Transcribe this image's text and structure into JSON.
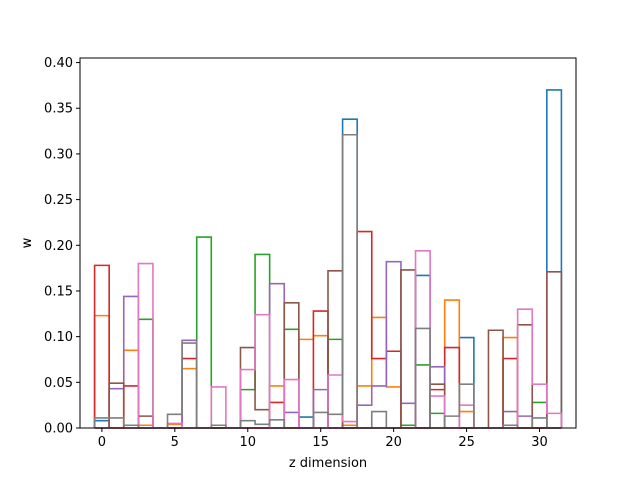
{
  "chart_data": {
    "type": "step",
    "xlabel": "z dimension",
    "ylabel": "w",
    "xlim": [
      -1.5,
      32.5
    ],
    "ylim": [
      0.0,
      0.405
    ],
    "x_ticks": [
      0,
      5,
      10,
      15,
      20,
      25,
      30
    ],
    "y_ticks": [
      0.0,
      0.05,
      0.1,
      0.15,
      0.2,
      0.25,
      0.3,
      0.35,
      0.4
    ],
    "x_tick_labels": [
      "0",
      "5",
      "10",
      "15",
      "20",
      "25",
      "30"
    ],
    "y_tick_labels": [
      "0.00",
      "0.05",
      "0.10",
      "0.15",
      "0.20",
      "0.25",
      "0.30",
      "0.35",
      "0.40"
    ],
    "x": [
      0,
      1,
      2,
      3,
      4,
      5,
      6,
      7,
      8,
      9,
      10,
      11,
      12,
      13,
      14,
      15,
      16,
      17,
      18,
      19,
      20,
      21,
      22,
      23,
      24,
      25,
      26,
      27,
      28,
      29,
      30,
      31
    ],
    "series": [
      {
        "color": "#1f77b4",
        "values": [
          0.008,
          0.0,
          0.0,
          0.0,
          0.0,
          0.0,
          0.0,
          0.0,
          0.0,
          0.0,
          0.0,
          0.0,
          0.0,
          0.0,
          0.012,
          0.0,
          0.0,
          0.338,
          0.0,
          0.0,
          0.0,
          0.0,
          0.167,
          0.0,
          0.0,
          0.099,
          0.0,
          0.0,
          0.0,
          0.0,
          0.0,
          0.37
        ]
      },
      {
        "color": "#ff7f0e",
        "values": [
          0.123,
          0.0,
          0.085,
          0.003,
          0.0,
          0.004,
          0.065,
          0.0,
          0.0,
          0.0,
          0.0,
          0.0,
          0.046,
          0.0,
          0.097,
          0.101,
          0.0,
          0.003,
          0.046,
          0.121,
          0.045,
          0.0,
          0.0,
          0.0,
          0.14,
          0.018,
          0.0,
          0.0,
          0.099,
          0.0,
          0.0,
          0.0
        ]
      },
      {
        "color": "#2ca02c",
        "values": [
          0.0,
          0.0,
          0.0,
          0.119,
          0.0,
          0.0,
          0.0,
          0.209,
          0.0,
          0.0,
          0.042,
          0.19,
          0.0,
          0.108,
          0.0,
          0.0,
          0.097,
          0.0,
          0.0,
          0.0,
          0.0,
          0.003,
          0.069,
          0.016,
          0.0,
          0.0,
          0.0,
          0.0,
          0.0,
          0.0,
          0.028,
          0.0
        ]
      },
      {
        "color": "#d62728",
        "values": [
          0.178,
          0.0,
          0.046,
          0.0,
          0.0,
          0.0,
          0.076,
          0.0,
          0.0,
          0.0,
          0.0,
          0.0,
          0.028,
          0.0,
          0.0,
          0.128,
          0.0,
          0.0,
          0.215,
          0.076,
          0.084,
          0.0,
          0.0,
          0.042,
          0.088,
          0.0,
          0.0,
          0.0,
          0.076,
          0.0,
          0.0,
          0.0
        ]
      },
      {
        "color": "#9467bd",
        "values": [
          0.0,
          0.043,
          0.144,
          0.0,
          0.0,
          0.0,
          0.096,
          0.0,
          0.0,
          0.0,
          0.0,
          0.0,
          0.158,
          0.017,
          0.0,
          0.042,
          0.0,
          0.0,
          0.025,
          0.046,
          0.182,
          0.027,
          0.0,
          0.067,
          0.0,
          0.0,
          0.0,
          0.0,
          0.018,
          0.013,
          0.0,
          0.0
        ]
      },
      {
        "color": "#8c564b",
        "values": [
          0.0,
          0.049,
          0.0,
          0.013,
          0.0,
          0.0,
          0.0,
          0.0,
          0.0,
          0.0,
          0.088,
          0.02,
          0.0,
          0.137,
          0.0,
          0.0,
          0.172,
          0.0,
          0.0,
          0.0,
          0.0,
          0.173,
          0.0,
          0.048,
          0.0,
          0.0,
          0.0,
          0.107,
          0.0,
          0.113,
          0.0,
          0.171
        ]
      },
      {
        "color": "#e377c2",
        "values": [
          0.0,
          0.0,
          0.0,
          0.18,
          0.0,
          0.005,
          0.0,
          0.0,
          0.045,
          0.0,
          0.064,
          0.124,
          0.0,
          0.053,
          0.0,
          0.0,
          0.058,
          0.007,
          0.0,
          0.0,
          0.0,
          0.0,
          0.194,
          0.035,
          0.0,
          0.025,
          0.0,
          0.0,
          0.0,
          0.13,
          0.048,
          0.016
        ]
      },
      {
        "color": "#7f7f7f",
        "values": [
          0.011,
          0.011,
          0.003,
          0.0,
          0.0,
          0.015,
          0.093,
          0.0,
          0.003,
          0.0,
          0.008,
          0.004,
          0.009,
          0.0,
          0.0,
          0.017,
          0.015,
          0.321,
          0.0,
          0.018,
          0.0,
          0.0,
          0.109,
          0.0,
          0.013,
          0.048,
          0.0,
          0.0,
          0.003,
          0.0,
          0.011,
          0.0
        ]
      }
    ]
  }
}
